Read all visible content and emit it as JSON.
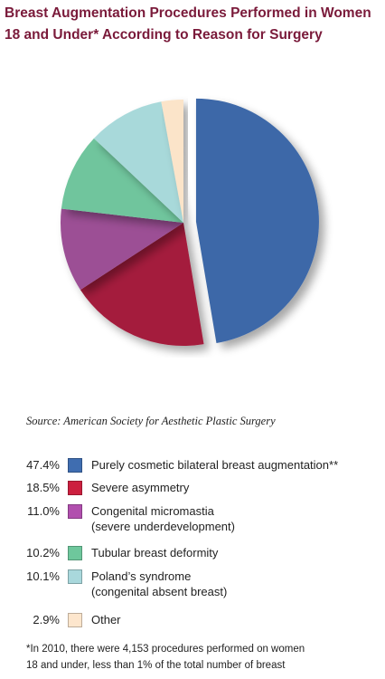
{
  "chart_data": {
    "type": "pie",
    "title_lines": [
      "Breast Augmentation Procedures Performed in Women",
      "18 and Under* According to Reason for Surgery"
    ],
    "slices": [
      {
        "label_lines": [
          "Purely cosmetic bilateral breast augmentation**"
        ],
        "value": 47.4,
        "pct_label": "47.4%",
        "color": "#3d68a8"
      },
      {
        "label_lines": [
          "Severe asymmetry"
        ],
        "value": 18.5,
        "pct_label": "18.5%",
        "color": "#a41b3c"
      },
      {
        "label_lines": [
          "Congenital micromastia",
          "(severe underdevelopment)"
        ],
        "value": 11.0,
        "pct_label": "11.0%",
        "color": "#9c4f95"
      },
      {
        "label_lines": [
          "Tubular breast deformity"
        ],
        "value": 10.2,
        "pct_label": "10.2%",
        "color": "#6fc59d"
      },
      {
        "label_lines": [
          "Poland’s syndrome",
          "(congenital absent breast)"
        ],
        "value": 10.1,
        "pct_label": "10.1%",
        "color": "#a8d9da"
      },
      {
        "label_lines": [
          "Other"
        ],
        "value": 2.9,
        "pct_label": "2.9%",
        "color": "#fbe4c9"
      }
    ],
    "legend_swatch_colors": [
      "#3f6db0",
      "#cc1f3f",
      "#b14fae",
      "#6ec79c",
      "#a9d8dc",
      "#fde6cd"
    ],
    "exploded_slice": "Purely cosmetic bilateral breast augmentation**"
  },
  "source": "Source: American Society for Aesthetic Plastic Surgery",
  "footnote_lines": [
    "*In 2010, there were 4,153 procedures performed on women",
    "18 and under, less than 1% of the total number of breast"
  ]
}
